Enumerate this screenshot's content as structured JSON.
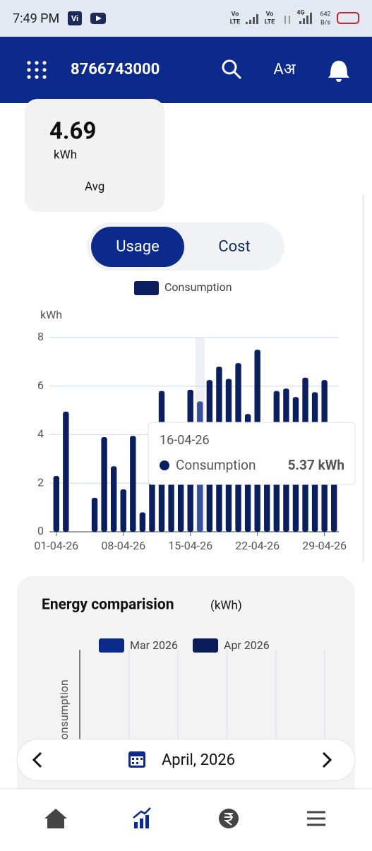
{
  "status_bar": {
    "time": "7:49 PM",
    "carrier": "Vi",
    "net1": "Vo",
    "net1b": "LTE",
    "net2": "Vo",
    "net2b": "LTE",
    "net3": "4G",
    "speed": "642",
    "speed_unit": "B/s"
  },
  "header": {
    "account": "8766743000",
    "lang_icon": "Aअ"
  },
  "avg_card": {
    "value": "4.69",
    "unit": "kWh",
    "label": "Avg"
  },
  "toggle": {
    "options": [
      "Usage",
      "Cost"
    ]
  },
  "chart_data": {
    "type": "bar",
    "y_label": "kWh",
    "categories": [
      "01-04-26",
      null,
      null,
      null,
      null,
      null,
      null,
      "08-04-26",
      null,
      null,
      null,
      null,
      null,
      null,
      "15-04-26",
      null,
      null,
      null,
      null,
      null,
      null,
      "22-04-26",
      null,
      null,
      null,
      null,
      null,
      null,
      "29-04-26",
      null
    ],
    "series": [
      {
        "name": "Consumption",
        "color": "#0b1f5e",
        "values": [
          2.3,
          4.95,
          0,
          0,
          1.4,
          3.9,
          2.7,
          1.75,
          3.95,
          0.8,
          3.1,
          5.8,
          3.5,
          3.8,
          5.85,
          5.37,
          6.25,
          6.8,
          6.3,
          6.95,
          4.85,
          7.5,
          4.2,
          5.8,
          5.9,
          5.55,
          6.35,
          5.75,
          6.25,
          4.0
        ]
      }
    ],
    "ylim": [
      0,
      8
    ],
    "yticks": [
      0,
      2,
      4,
      6,
      8
    ],
    "grid": true,
    "tooltip": {
      "date": "16-04-26",
      "value": 5.37,
      "value_label": "5.37 kWh"
    }
  },
  "energy_comparison": {
    "title": "Energy comparision",
    "unit": "(kWh)",
    "legend": [
      {
        "name": "Mar 2026",
        "color": "#0c2a8a"
      },
      {
        "name": "Apr 2026",
        "color": "#0a1d58"
      }
    ],
    "y_label": "Consumption"
  },
  "month_picker": {
    "label": "April, 2026"
  }
}
